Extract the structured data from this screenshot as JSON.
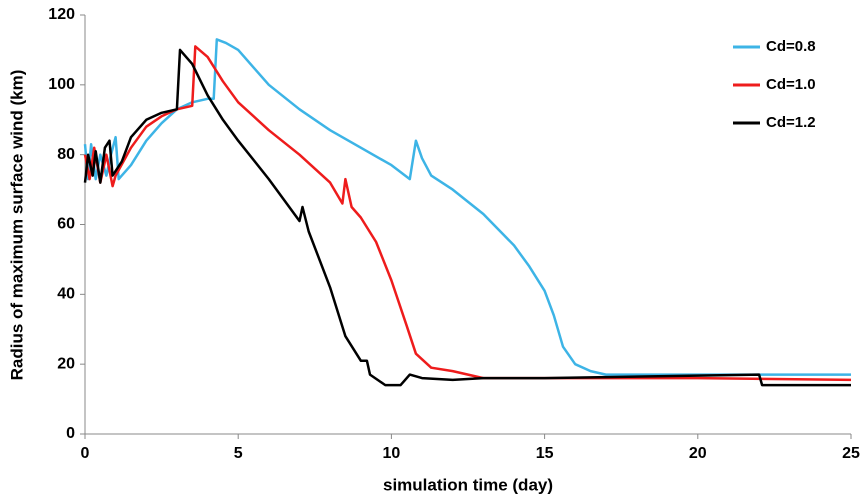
{
  "chart_data": {
    "type": "line",
    "x_label": "simulation time (day)",
    "y_label": "Radius of maximum surface wind (km)",
    "xlim": [
      0,
      25
    ],
    "xticks": [
      0,
      5,
      10,
      15,
      20,
      25
    ],
    "ylim": [
      0,
      120
    ],
    "yticks": [
      0,
      20,
      40,
      60,
      80,
      100,
      120
    ],
    "grid": false,
    "legend": "upper right",
    "series": [
      {
        "name": "Cd=0.8",
        "color": "#3db4e6",
        "x": [
          0,
          0.1,
          0.2,
          0.35,
          0.5,
          0.7,
          0.85,
          1.0,
          1.1,
          1.5,
          2,
          2.5,
          3,
          3.5,
          4,
          4.2,
          4.3,
          4.6,
          5,
          5.5,
          6,
          7,
          8,
          9,
          10,
          10.6,
          10.8,
          11,
          11.3,
          12,
          13,
          14,
          14.5,
          15,
          15.3,
          15.6,
          16,
          16.5,
          17,
          20,
          25
        ],
        "values": [
          83,
          73,
          83,
          73,
          80,
          74,
          80,
          85,
          73,
          77,
          84,
          89,
          93,
          95,
          96,
          96,
          113,
          112,
          110,
          105,
          100,
          93,
          87,
          82,
          77,
          73,
          84,
          79,
          74,
          70,
          63,
          54,
          48,
          41,
          34,
          25,
          20,
          18,
          17,
          17,
          17
        ]
      },
      {
        "name": "Cd=1.0",
        "color": "#ee1c1c",
        "x": [
          0,
          0.15,
          0.3,
          0.5,
          0.7,
          0.9,
          1.0,
          1.5,
          2,
          2.5,
          3,
          3.5,
          3.6,
          4,
          4.5,
          5,
          6,
          7,
          8,
          8.4,
          8.5,
          8.7,
          9,
          9.5,
          10,
          10.5,
          10.8,
          11.3,
          12,
          13,
          15,
          20,
          25
        ],
        "values": [
          80,
          73,
          82,
          72,
          80,
          71,
          74,
          82,
          88,
          91,
          93,
          94,
          111,
          108,
          101,
          95,
          87,
          80,
          72,
          66,
          73,
          65,
          62,
          55,
          44,
          31,
          23,
          19,
          18,
          16,
          16,
          16,
          15.5
        ]
      },
      {
        "name": "Cd=1.2",
        "color": "#000000",
        "x": [
          0,
          0.1,
          0.25,
          0.35,
          0.5,
          0.65,
          0.8,
          0.9,
          1.2,
          1.5,
          2,
          2.5,
          3,
          3.1,
          3.5,
          4,
          4.5,
          5,
          6,
          7,
          7.1,
          7.3,
          8,
          8.5,
          9,
          9.2,
          9.3,
          9.8,
          10.3,
          10.6,
          11,
          12,
          13,
          15,
          22,
          22.1,
          25
        ],
        "values": [
          72,
          80,
          74,
          81,
          72,
          82,
          84,
          74,
          78,
          85,
          90,
          92,
          93,
          110,
          106,
          97,
          90,
          84,
          73,
          61,
          65,
          58,
          42,
          28,
          21,
          21,
          17,
          14,
          14,
          17,
          16,
          15.5,
          16,
          16,
          17,
          14,
          14
        ]
      }
    ]
  }
}
